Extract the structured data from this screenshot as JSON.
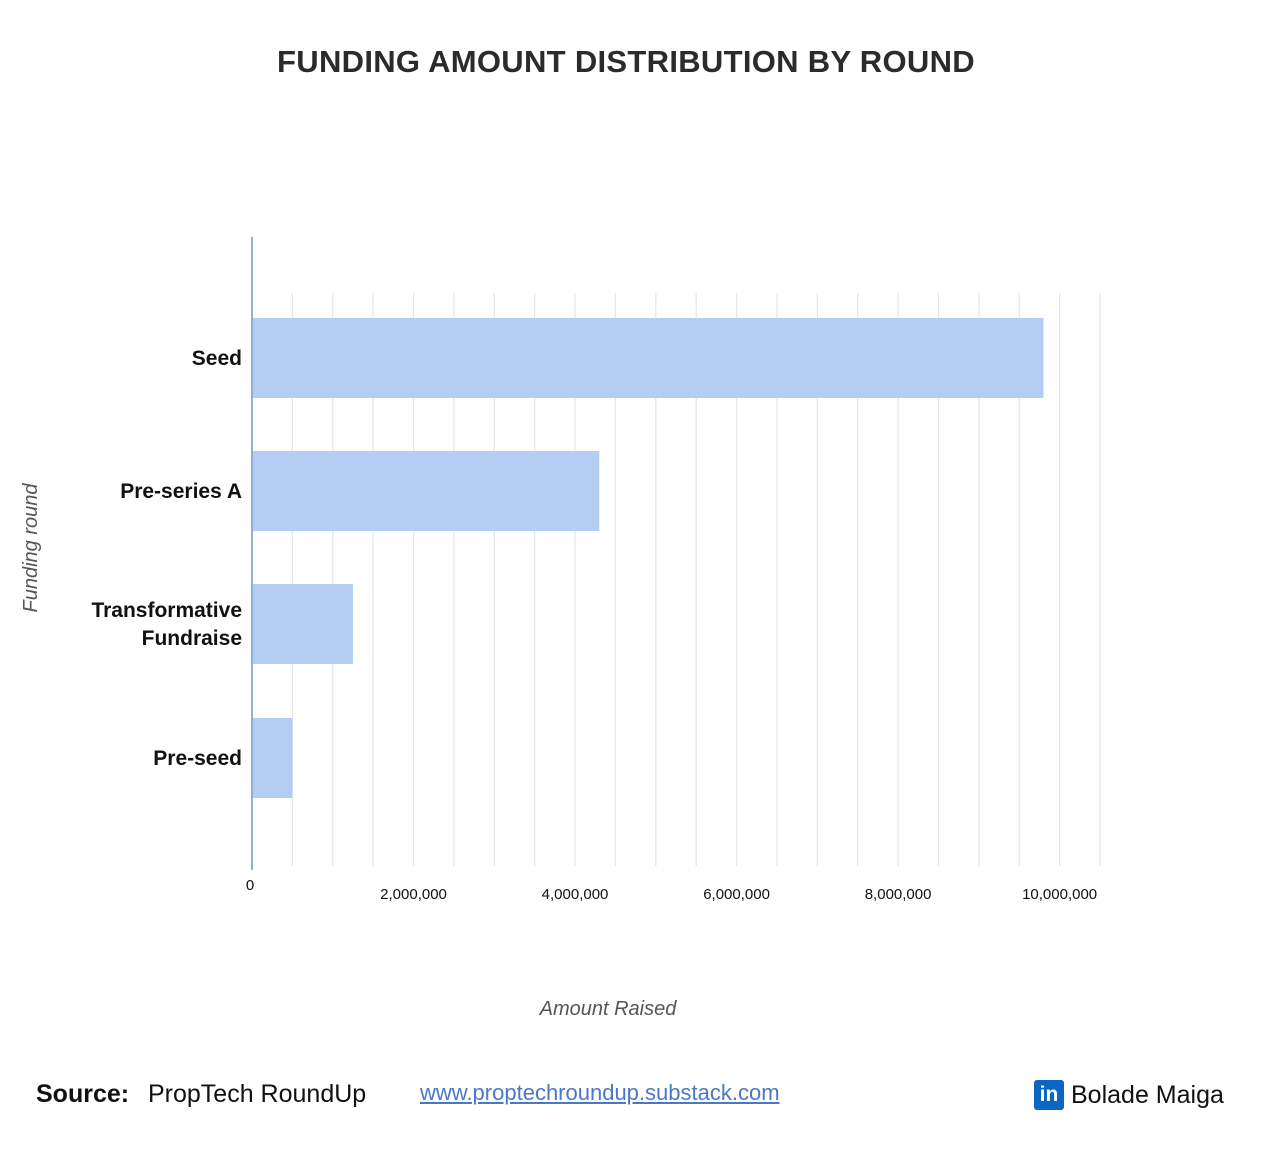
{
  "title": "FUNDING AMOUNT DISTRIBUTION BY ROUND",
  "chart_data": {
    "type": "bar",
    "orientation": "horizontal",
    "title": "FUNDING AMOUNT DISTRIBUTION BY ROUND",
    "xlabel": "Amount Raised",
    "ylabel": "Funding round",
    "categories": [
      [
        "Seed"
      ],
      [
        "Pre-series A"
      ],
      [
        "Transformative",
        "Fundraise"
      ],
      [
        "Pre-seed"
      ]
    ],
    "values": [
      9800000,
      4300000,
      1250000,
      500000
    ],
    "xlim": [
      0,
      10500000
    ],
    "ticks": [
      {
        "value": 0,
        "label": "0"
      },
      {
        "value": 2000000,
        "label": "2,000,000"
      },
      {
        "value": 4000000,
        "label": "4,000,000"
      },
      {
        "value": 6000000,
        "label": "6,000,000"
      },
      {
        "value": 8000000,
        "label": "8,000,000"
      },
      {
        "value": 10000000,
        "label": "10,000,000"
      }
    ],
    "grid": true,
    "bar_color": "#b4cdf3",
    "grid_color": "#e4e6ea",
    "axis_color": "#8fb0d8"
  },
  "footer": {
    "source_label": "Source:",
    "source_name": "PropTech RoundUp",
    "url": "www.proptechroundup.substack.com",
    "brand_icon": "in",
    "brand_icon_name": "linkedin-icon",
    "brand_name": "Bolade Maiga"
  }
}
